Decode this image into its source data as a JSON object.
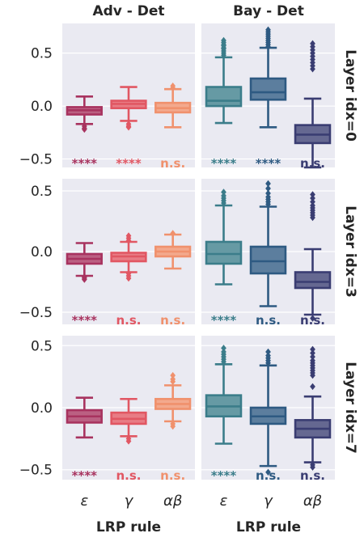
{
  "chart_data": {
    "type": "box",
    "columns": [
      "Adv - Det",
      "Bay - Det"
    ],
    "rows": [
      "Layer idx=0",
      "Layer idx=3",
      "Layer idx=7"
    ],
    "categories": [
      "ε",
      "γ",
      "αβ"
    ],
    "xlabel": "LRP rule",
    "yticks": [
      [
        "0.5",
        "0.0",
        "−0.5"
      ],
      [
        "0.5",
        "0.0",
        "−0.5"
      ],
      [
        "0.5",
        "0.0",
        "−0.5"
      ]
    ],
    "ylim": [
      [
        -0.58,
        0.78
      ],
      [
        -0.6,
        0.6
      ],
      [
        -0.58,
        0.58
      ]
    ],
    "colors": {
      "Adv - Det": [
        "#a8335f",
        "#e15763",
        "#f0916d"
      ],
      "Bay - Det": [
        "#3b7d8a",
        "#2e5a82",
        "#3a3d72"
      ]
    },
    "panels": [
      {
        "row": "Layer idx=0",
        "column": "Adv - Det",
        "boxes": [
          {
            "q1": -0.08,
            "median": -0.04,
            "q3": -0.01,
            "whislo": -0.17,
            "whishi": 0.09,
            "fliers": [
              -0.19,
              -0.21,
              -0.22
            ]
          },
          {
            "q1": -0.02,
            "median": 0.02,
            "q3": 0.05,
            "whislo": -0.14,
            "whishi": 0.18,
            "fliers": [
              -0.17,
              -0.19,
              -0.2
            ]
          },
          {
            "q1": -0.06,
            "median": -0.02,
            "q3": 0.03,
            "whislo": -0.2,
            "whishi": 0.16,
            "fliers": [
              0.17,
              0.19
            ]
          }
        ],
        "significance": [
          "****",
          "****",
          "n.s."
        ]
      },
      {
        "row": "Layer idx=0",
        "column": "Bay - Det",
        "boxes": [
          {
            "q1": 0.0,
            "median": 0.05,
            "q3": 0.18,
            "whislo": -0.16,
            "whishi": 0.46,
            "fliers": [
              0.48,
              0.5,
              0.52,
              0.54,
              0.55,
              0.57,
              0.58,
              0.6,
              0.62
            ]
          },
          {
            "q1": 0.06,
            "median": 0.13,
            "q3": 0.26,
            "whislo": -0.2,
            "whishi": 0.55,
            "fliers": [
              0.56,
              0.58,
              0.6,
              0.62,
              0.64,
              0.66,
              0.68,
              0.7,
              0.72
            ]
          },
          {
            "q1": -0.35,
            "median": -0.27,
            "q3": -0.18,
            "whislo": -0.58,
            "whishi": 0.07,
            "fliers": [
              0.35,
              0.38,
              0.41,
              0.44,
              0.47,
              0.5,
              0.53,
              0.56,
              0.59
            ]
          }
        ],
        "significance": [
          "****",
          "****",
          "n.s."
        ]
      },
      {
        "row": "Layer idx=3",
        "column": "Adv - Det",
        "boxes": [
          {
            "q1": -0.1,
            "median": -0.06,
            "q3": -0.02,
            "whislo": -0.2,
            "whishi": 0.07,
            "fliers": [
              -0.21,
              -0.22,
              -0.23
            ]
          },
          {
            "q1": -0.08,
            "median": -0.04,
            "q3": -0.01,
            "whislo": -0.17,
            "whishi": 0.08,
            "fliers": [
              0.09,
              0.11,
              0.13,
              -0.18,
              -0.2,
              -0.22
            ]
          },
          {
            "q1": -0.04,
            "median": 0.0,
            "q3": 0.04,
            "whislo": -0.14,
            "whishi": 0.14,
            "fliers": [
              0.15
            ]
          }
        ],
        "significance": [
          "****",
          "n.s.",
          "n.s."
        ]
      },
      {
        "row": "Layer idx=3",
        "column": "Bay - Det",
        "boxes": [
          {
            "q1": -0.1,
            "median": -0.02,
            "q3": 0.08,
            "whislo": -0.27,
            "whishi": 0.38,
            "fliers": [
              0.4,
              0.42,
              0.44,
              0.46,
              0.49
            ]
          },
          {
            "q1": -0.18,
            "median": -0.08,
            "q3": 0.04,
            "whislo": -0.45,
            "whishi": 0.37,
            "fliers": [
              0.39,
              0.41,
              0.43,
              0.45,
              0.48,
              0.52,
              0.56
            ]
          },
          {
            "q1": -0.3,
            "median": -0.25,
            "q3": -0.17,
            "whislo": -0.52,
            "whishi": 0.02,
            "fliers": [
              0.28,
              0.3,
              0.32,
              0.34,
              0.36,
              0.38,
              0.41,
              0.44,
              0.47,
              -0.55
            ]
          }
        ],
        "significance": [
          "****",
          "n.s.",
          "n.s."
        ]
      },
      {
        "row": "Layer idx=7",
        "column": "Adv - Det",
        "boxes": [
          {
            "q1": -0.12,
            "median": -0.07,
            "q3": -0.02,
            "whislo": -0.24,
            "whishi": 0.08,
            "fliers": []
          },
          {
            "q1": -0.13,
            "median": -0.09,
            "q3": -0.04,
            "whislo": -0.23,
            "whishi": 0.07,
            "fliers": [
              -0.25,
              -0.27
            ]
          },
          {
            "q1": -0.01,
            "median": 0.03,
            "q3": 0.07,
            "whislo": -0.11,
            "whishi": 0.18,
            "fliers": [
              0.21,
              0.23,
              0.26,
              -0.13,
              -0.15
            ]
          }
        ],
        "significance": [
          "****",
          "n.s.",
          "n.s."
        ]
      },
      {
        "row": "Layer idx=7",
        "column": "Bay - Det",
        "boxes": [
          {
            "q1": -0.07,
            "median": 0.01,
            "q3": 0.1,
            "whislo": -0.29,
            "whishi": 0.35,
            "fliers": [
              0.37,
              0.39,
              0.41,
              0.43,
              0.45,
              0.48
            ]
          },
          {
            "q1": -0.13,
            "median": -0.07,
            "q3": 0.0,
            "whislo": -0.47,
            "whishi": 0.34,
            "fliers": [
              0.36,
              0.38,
              0.4,
              0.42,
              0.45,
              -0.52
            ]
          },
          {
            "q1": -0.24,
            "median": -0.17,
            "q3": -0.1,
            "whislo": -0.44,
            "whishi": 0.09,
            "fliers": [
              0.17,
              0.26,
              0.28,
              0.3,
              0.32,
              0.34,
              0.36,
              0.38,
              0.41,
              0.44,
              0.47,
              -0.46,
              -0.48
            ]
          }
        ],
        "significance": [
          "****",
          "n.s.",
          "n.s."
        ]
      }
    ]
  }
}
